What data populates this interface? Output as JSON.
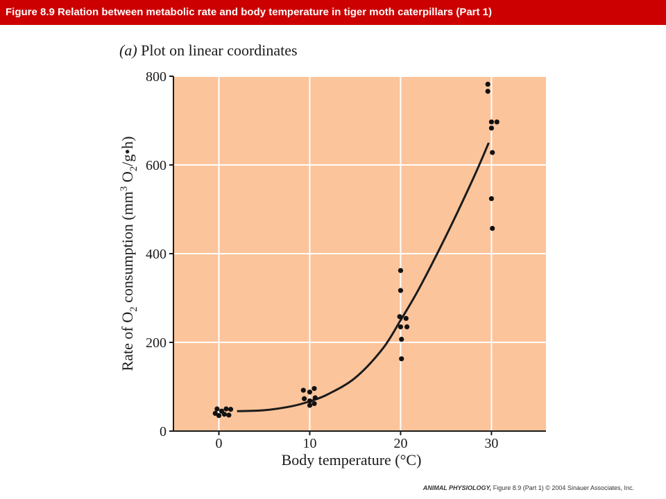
{
  "header": {
    "title": "Figure 8.9  Relation between metabolic rate and body temperature in tiger moth caterpillars (Part 1)",
    "background_color": "#cc0000"
  },
  "panel": {
    "letter": "(a)",
    "title": "Plot on linear coordinates"
  },
  "chart_data": {
    "type": "scatter",
    "xlabel": "Body temperature (°C)",
    "ylabel_parts": {
      "a": "Rate of O",
      "sub1": "2",
      "b": " consumption (mm",
      "sup": "3",
      "c": " O",
      "sub2": "2",
      "d": "/g•h)"
    },
    "xlim": [
      -5,
      36
    ],
    "ylim": [
      0,
      800
    ],
    "x_ticks": [
      0,
      10,
      20,
      30
    ],
    "y_ticks": [
      0,
      200,
      400,
      600,
      800
    ],
    "grid": true,
    "plot_background": "#fbc49b",
    "grid_color": "#ffffff",
    "points": [
      {
        "x": -0.4,
        "y": 40
      },
      {
        "x": -0.2,
        "y": 50
      },
      {
        "x": 0.0,
        "y": 35
      },
      {
        "x": 0.3,
        "y": 45
      },
      {
        "x": 0.6,
        "y": 38
      },
      {
        "x": 0.8,
        "y": 50
      },
      {
        "x": 1.1,
        "y": 36
      },
      {
        "x": 1.3,
        "y": 49
      },
      {
        "x": 9.3,
        "y": 92
      },
      {
        "x": 9.4,
        "y": 73
      },
      {
        "x": 10.0,
        "y": 88
      },
      {
        "x": 10.0,
        "y": 68
      },
      {
        "x": 10.0,
        "y": 58
      },
      {
        "x": 10.5,
        "y": 96
      },
      {
        "x": 10.5,
        "y": 62
      },
      {
        "x": 10.6,
        "y": 75
      },
      {
        "x": 20.0,
        "y": 362
      },
      {
        "x": 20.0,
        "y": 317
      },
      {
        "x": 19.9,
        "y": 258
      },
      {
        "x": 20.0,
        "y": 235
      },
      {
        "x": 20.6,
        "y": 254
      },
      {
        "x": 20.7,
        "y": 235
      },
      {
        "x": 20.1,
        "y": 207
      },
      {
        "x": 20.1,
        "y": 163
      },
      {
        "x": 29.6,
        "y": 782
      },
      {
        "x": 29.6,
        "y": 766
      },
      {
        "x": 30.0,
        "y": 697
      },
      {
        "x": 30.6,
        "y": 697
      },
      {
        "x": 30.0,
        "y": 683
      },
      {
        "x": 30.1,
        "y": 628
      },
      {
        "x": 30.0,
        "y": 524
      },
      {
        "x": 30.1,
        "y": 457
      }
    ],
    "fit_curve": {
      "x": [
        2,
        5,
        8,
        10,
        12,
        15,
        18,
        20,
        22,
        25,
        28,
        29.7
      ],
      "y": [
        45,
        47,
        56,
        67,
        83,
        120,
        185,
        250,
        320,
        440,
        570,
        650
      ]
    }
  },
  "credit": {
    "book": "ANIMAL PHYSIOLOGY,",
    "figure": " Figure 8.9 (Part 1)",
    "copyright": "  © 2004 Sinauer Associates, Inc."
  }
}
